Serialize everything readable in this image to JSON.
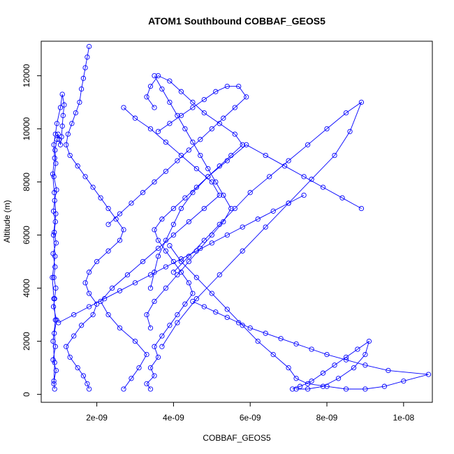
{
  "chart_data": {
    "type": "scatter",
    "title": "ATOM1 Southbound COBBAF_GEOS5",
    "xlabel": "COBBAF_GEOS5",
    "ylabel": "Altitude (m)",
    "xlim": [
      5.5e-10,
      1.075e-08
    ],
    "ylim": [
      -300,
      13300
    ],
    "x_ticks": [
      {
        "value": 2e-09,
        "label": "2e-09"
      },
      {
        "value": 4e-09,
        "label": "4e-09"
      },
      {
        "value": 6e-09,
        "label": "6e-09"
      },
      {
        "value": 8e-09,
        "label": "8e-09"
      },
      {
        "value": 1e-08,
        "label": "1e-08"
      }
    ],
    "y_ticks": [
      {
        "value": 0,
        "label": "0"
      },
      {
        "value": 2000,
        "label": "2000"
      },
      {
        "value": 4000,
        "label": "4000"
      },
      {
        "value": 6000,
        "label": "6000"
      },
      {
        "value": 8000,
        "label": "8000"
      },
      {
        "value": 10000,
        "label": "10000"
      },
      {
        "value": 12000,
        "label": "12000"
      }
    ],
    "color": "#0000ff",
    "marker": "open-circle",
    "connected": true,
    "grid": false,
    "series": [
      {
        "x": [
          9e-10,
          8.8e-10,
          9.4e-10,
          8.6e-10,
          9.2e-10,
          8.9e-10,
          9.5e-10,
          8.7e-10,
          9e-10,
          9.3e-10,
          8.8e-10,
          9.1e-10,
          8.6e-10,
          9.4e-10,
          8.9e-10,
          9.2e-10,
          8.7e-10,
          9e-10,
          9.5e-10,
          8.8e-10,
          9.3e-10,
          9.1e-10,
          9.6e-10,
          9.9e-10,
          1.02e-09,
          1.05e-09,
          1.08e-09,
          1.1e-09,
          1.12e-09,
          1.15e-09,
          1.1e-09,
          1.05e-09,
          9.6e-10,
          9.2e-10,
          8.8e-10,
          9e-10,
          8.5e-10,
          8.9e-10,
          9.3e-10,
          8.7e-10,
          9.1e-10,
          8.4e-10,
          8.8e-10,
          9.2e-10,
          8.6e-10,
          9e-10,
          8.8e-10
        ],
        "y": [
          200,
          500,
          900,
          1300,
          1800,
          2300,
          2800,
          3300,
          3600,
          4000,
          4400,
          4800,
          5300,
          5700,
          6100,
          6500,
          6900,
          7300,
          7700,
          8200,
          8700,
          9200,
          9600,
          9800,
          9600,
          9400,
          9700,
          10100,
          10500,
          10900,
          11300,
          10800,
          10200,
          9800,
          9400,
          8900,
          8300,
          7600,
          6800,
          6000,
          5200,
          4400,
          3600,
          2800,
          2000,
          1200,
          400
        ]
      },
      {
        "x": [
          1.8e-09,
          1.75e-09,
          1.7e-09,
          1.65e-09,
          1.6e-09,
          1.55e-09,
          1.45e-09,
          1.35e-09,
          1.25e-09,
          1.2e-09,
          1.3e-09,
          1.5e-09,
          1.7e-09,
          1.9e-09,
          2.1e-09,
          2.3e-09,
          2.5e-09,
          2.7e-09,
          2.6e-09,
          2.3e-09,
          2e-09,
          1.8e-09,
          1.7e-09,
          1.8e-09,
          2e-09,
          1.9e-09,
          1.6e-09,
          1.4e-09,
          1.2e-09,
          1.3e-09,
          1.5e-09,
          1.65e-09,
          1.75e-09,
          1.8e-09
        ],
        "y": [
          13100,
          12700,
          12300,
          11900,
          11500,
          11000,
          10600,
          10200,
          9800,
          9400,
          9000,
          8600,
          8200,
          7800,
          7400,
          7000,
          6600,
          6200,
          5800,
          5400,
          5000,
          4600,
          4200,
          3800,
          3400,
          3000,
          2600,
          2200,
          1800,
          1400,
          1000,
          700,
          400,
          200
        ]
      },
      {
        "x": [
          3.4e-09,
          3.3e-09,
          3.5e-09,
          3.4e-09,
          3.6e-09,
          3.5e-09,
          3.7e-09,
          3.9e-09,
          4.1e-09,
          4.3e-09,
          4.5e-09,
          4.4e-09,
          4.2e-09,
          4e-09,
          3.8e-09,
          3.6e-09,
          3.5e-09,
          3.7e-09,
          4e-09,
          4.3e-09,
          4.6e-09,
          4.9e-09,
          5.2e-09,
          5.5e-09,
          5.8e-09,
          5.6e-09,
          5.2e-09,
          4.8e-09,
          4.5e-09,
          4.2e-09,
          3.9e-09,
          3.6e-09,
          3.4e-09,
          3.3e-09,
          3.5e-09
        ],
        "y": [
          200,
          400,
          700,
          1000,
          1400,
          1800,
          2200,
          2600,
          3000,
          3400,
          3800,
          4200,
          4600,
          5000,
          5400,
          5800,
          6200,
          6600,
          7000,
          7400,
          7800,
          8200,
          8600,
          9000,
          9400,
          9800,
          10200,
          10600,
          11000,
          11400,
          11800,
          12000,
          11600,
          11200,
          10800
        ]
      },
      {
        "x": [
          4.5e-09,
          4.8e-09,
          5.1e-09,
          5.4e-09,
          5.7e-09,
          6e-09,
          6.4e-09,
          6.8e-09,
          7.2e-09,
          7.6e-09,
          8e-09,
          8.5e-09,
          9e-09,
          9.6e-09,
          1.065e-08,
          1e-08,
          9.5e-09,
          9e-09,
          8.5e-09,
          8e-09,
          7.5e-09,
          7.2e-09,
          7e-09,
          6.6e-09,
          6.2e-09,
          5.8e-09,
          5.4e-09,
          5e-09,
          4.6e-09,
          4.2e-09,
          3.9e-09
        ],
        "y": [
          3500,
          3300,
          3100,
          2900,
          2700,
          2500,
          2300,
          2100,
          1900,
          1700,
          1500,
          1300,
          1100,
          900,
          750,
          500,
          300,
          200,
          200,
          300,
          400,
          600,
          1000,
          1500,
          2000,
          2600,
          3200,
          3800,
          4400,
          5000,
          5600
        ]
      },
      {
        "x": [
          4e-09,
          4.4e-09,
          4.8e-09,
          5.2e-09,
          5.6e-09,
          6e-09,
          6.5e-09,
          7e-09,
          7.5e-09,
          8e-09,
          8.5e-09,
          8.9e-09,
          8.6e-09,
          8.2e-09,
          7.6e-09,
          7e-09,
          6.4e-09,
          5.8e-09,
          5.2e-09,
          4.6e-09,
          4.1e-09,
          3.7e-09
        ],
        "y": [
          4600,
          5200,
          5800,
          6400,
          7000,
          7600,
          8200,
          8800,
          9400,
          10000,
          10600,
          11000,
          9900,
          9000,
          8100,
          7200,
          6300,
          5400,
          4500,
          3600,
          2700,
          1800
        ]
      },
      {
        "x": [
          2.7e-09,
          2.9e-09,
          3.1e-09,
          3.3e-09,
          3e-09,
          2.6e-09,
          2.3e-09,
          2.1e-09,
          2.4e-09,
          2.8e-09,
          3.2e-09,
          3.6e-09,
          4e-09,
          4.4e-09,
          4.8e-09,
          5.2e-09,
          5e-09,
          4.6e-09,
          4.2e-09,
          3.8e-09,
          3.4e-09,
          3e-09,
          2.7e-09
        ],
        "y": [
          200,
          600,
          1000,
          1500,
          2000,
          2500,
          3000,
          3500,
          4000,
          4500,
          5000,
          5500,
          6000,
          6500,
          7000,
          7500,
          8000,
          8500,
          9000,
          9500,
          10000,
          10400,
          10800
        ]
      },
      {
        "x": [
          3.6e-09,
          3.9e-09,
          4.2e-09,
          4.5e-09,
          4.8e-09,
          5.1e-09,
          5.4e-09,
          5.7e-09,
          5.9e-09,
          5.6e-09,
          5.3e-09,
          5e-09,
          4.7e-09,
          4.4e-09,
          4.1e-09,
          3.8e-09,
          3.5e-09,
          3.2e-09,
          2.9e-09,
          2.6e-09,
          2.3e-09
        ],
        "y": [
          9900,
          10200,
          10500,
          10800,
          11100,
          11400,
          11600,
          11600,
          11200,
          10800,
          10400,
          10000,
          9600,
          9200,
          8800,
          8400,
          8000,
          7600,
          7200,
          6800,
          6400
        ]
      },
      {
        "x": [
          8.9e-09,
          8.4e-09,
          7.9e-09,
          7.4e-09,
          6.9e-09,
          6.4e-09,
          5.9e-09,
          5.4e-09,
          4.9e-09,
          4.5e-09,
          4.2e-09,
          4e-09,
          3.8e-09,
          3.6e-09,
          3.5e-09,
          3.4e-09
        ],
        "y": [
          7000,
          7400,
          7800,
          8200,
          8600,
          9000,
          9400,
          8800,
          8200,
          7600,
          7000,
          6400,
          5800,
          5200,
          4600,
          4000
        ]
      },
      {
        "x": [
          1e-09,
          1.4e-09,
          1.8e-09,
          2.2e-09,
          2.6e-09,
          3e-09,
          3.4e-09,
          3.8e-09,
          4.2e-09,
          4.6e-09,
          5e-09,
          5.4e-09,
          5.8e-09,
          6.2e-09,
          6.6e-09,
          7e-09,
          7.4e-09
        ],
        "y": [
          2700,
          3000,
          3300,
          3600,
          3900,
          4200,
          4500,
          4800,
          5100,
          5400,
          5700,
          6000,
          6300,
          6600,
          6900,
          7200,
          7500
        ]
      },
      {
        "x": [
          3.5e-09,
          3.7e-09,
          3.9e-09,
          4.1e-09,
          4.3e-09,
          4.5e-09,
          4.7e-09,
          4.9e-09,
          5.1e-09,
          5.3e-09,
          5.5e-09,
          5.3e-09,
          5e-09,
          4.7e-09,
          4.4e-09,
          4.1e-09,
          3.8e-09,
          3.5e-09,
          3.3e-09,
          3.4e-09
        ],
        "y": [
          12000,
          11500,
          11000,
          10500,
          10000,
          9500,
          9000,
          8500,
          8000,
          7500,
          7000,
          6500,
          6000,
          5500,
          5000,
          4500,
          4000,
          3500,
          3000,
          2500
        ]
      },
      {
        "x": [
          7.1e-09,
          7.3e-09,
          7.6e-09,
          7.9e-09,
          8.2e-09,
          8.5e-09,
          8.8e-09,
          9.1e-09,
          9e-09,
          8.7e-09,
          8.3e-09,
          7.9e-09,
          7.5e-09,
          7.2e-09
        ],
        "y": [
          200,
          300,
          500,
          800,
          1100,
          1400,
          1700,
          2000,
          1500,
          1000,
          600,
          300,
          200,
          200
        ]
      }
    ]
  }
}
